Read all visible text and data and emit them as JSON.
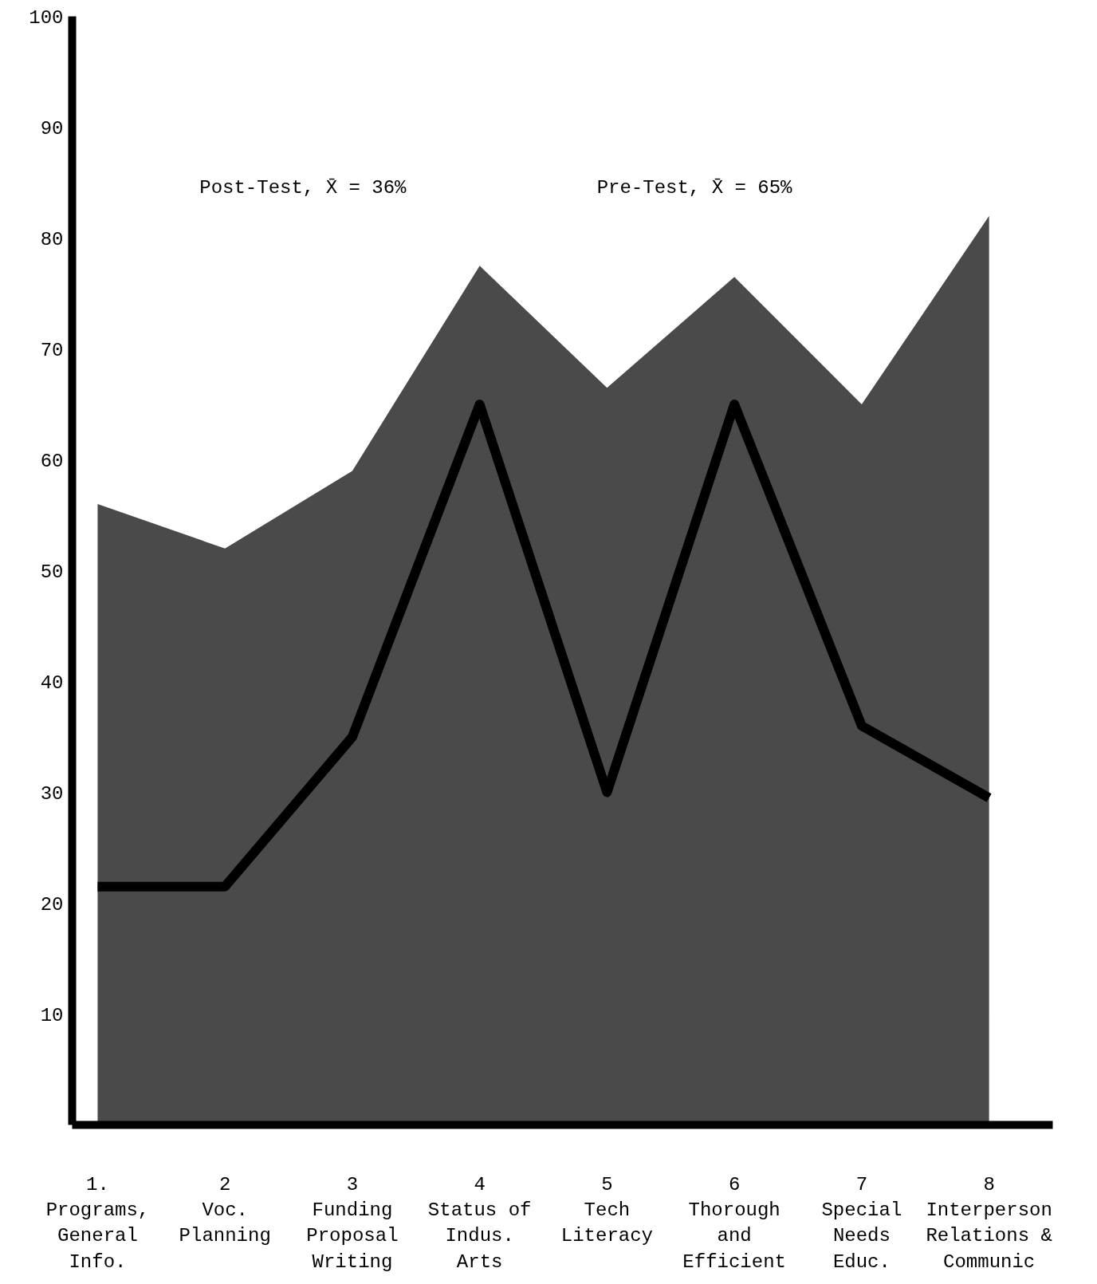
{
  "chart_data": {
    "type": "line",
    "categories": [
      "1.\nPrograms,\nGeneral\nInfo.",
      "2\nVoc.\nPlanning",
      "3\nFunding\nProposal\nWriting",
      "4\nStatus of\nIndus.\nArts",
      "5\nTech\nLiteracy",
      "6\nThorough\nand\nEfficient",
      "7\nSpecial\nNeeds\nEduc.",
      "8\nInterperson\nRelations &\nCommunic"
    ],
    "series": [
      {
        "type": "area",
        "color": "#4a4a4a",
        "values": [
          56,
          52,
          59,
          77.5,
          66.5,
          76.5,
          65,
          82
        ]
      },
      {
        "color": "#000000",
        "values": [
          21.5,
          21.5,
          35,
          65,
          30,
          65,
          36,
          29.5
        ]
      }
    ],
    "ylim": [
      0,
      100
    ],
    "yticks": [
      10,
      20,
      30,
      40,
      50,
      60,
      70,
      80,
      90,
      100
    ],
    "grid": false,
    "annotations": [
      "Post-Test, X̄ = 36%",
      "Pre-Test, X̄ = 65%"
    ]
  }
}
